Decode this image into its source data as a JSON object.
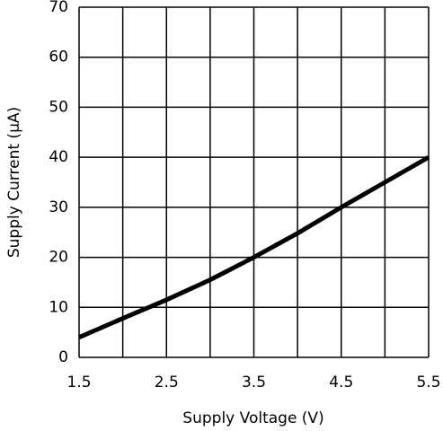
{
  "chart_data": {
    "type": "line",
    "x_label": "Supply Voltage (V)",
    "y_label": "Supply Current (μA)",
    "x": [
      1.5,
      2.0,
      2.5,
      3.0,
      3.5,
      4.0,
      4.5,
      5.0,
      5.5
    ],
    "series": [
      {
        "color": "#000000",
        "values": [
          4,
          7.8,
          11.5,
          15.5,
          20,
          24.8,
          30,
          35,
          40
        ]
      }
    ],
    "xlim": [
      1.5,
      5.5
    ],
    "ylim": [
      0,
      70
    ],
    "xticks": [
      1.5,
      2.5,
      3.5,
      4.5,
      5.5
    ],
    "xminorticks": [
      2,
      3,
      4,
      5
    ],
    "yticks": [
      0,
      10,
      20,
      30,
      40,
      50,
      60,
      70
    ],
    "grid": true
  }
}
